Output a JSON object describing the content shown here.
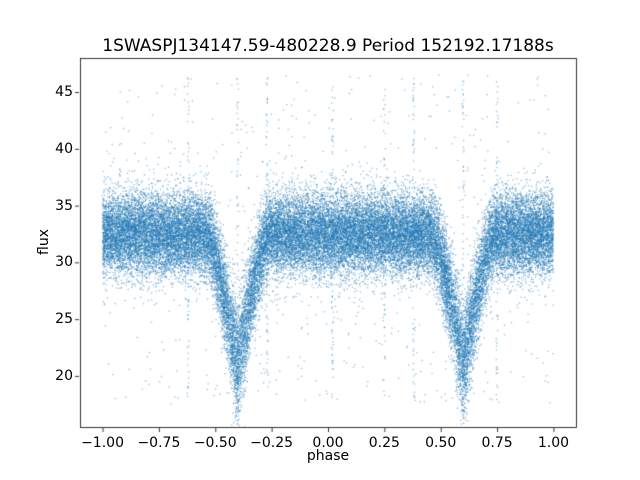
{
  "chart_data": {
    "type": "scatter",
    "title": "1SWASPJ134147.59-480228.9 Period 152192.17188s",
    "xlabel": "phase",
    "ylabel": "flux",
    "xlim": [
      -1.1,
      1.1
    ],
    "ylim": [
      15.5,
      48.0
    ],
    "xticks": [
      -1.0,
      -0.75,
      -0.5,
      -0.25,
      0.0,
      0.25,
      0.5,
      0.75,
      1.0
    ],
    "xtick_labels": [
      "−1.00",
      "−0.75",
      "−0.50",
      "−0.25",
      "0.00",
      "0.25",
      "0.50",
      "0.75",
      "1.00"
    ],
    "yticks": [
      20,
      25,
      30,
      35,
      40,
      45
    ],
    "ytick_labels": [
      "20",
      "25",
      "30",
      "35",
      "40",
      "45"
    ],
    "grid": false,
    "legend": null,
    "point_color": "#1f77b4",
    "point_alpha": 0.55,
    "marker_size_px": 1.2,
    "n_points": 40000,
    "baseline": {
      "mean_flux": 32.5,
      "sigma": 1.8,
      "outlier_fraction": 0.015,
      "outlier_flux_range": [
        17.5,
        46.5
      ]
    },
    "eclipses": [
      {
        "phase_center": -0.4,
        "depth": 11.5,
        "half_width": 0.14,
        "min_flux": 21.0
      },
      {
        "phase_center": 0.6,
        "depth": 11.5,
        "half_width": 0.14,
        "min_flux": 21.0
      }
    ],
    "outlier_columns": {
      "phases": [
        -0.62,
        -0.4,
        -0.27,
        0.02,
        0.25,
        0.38,
        0.6,
        0.75
      ],
      "flux_range": [
        18.0,
        46.5
      ],
      "points_per_column": 60
    },
    "binned_median_flux": {
      "phase": [
        -1.0,
        -0.9,
        -0.8,
        -0.7,
        -0.6,
        -0.5,
        -0.45,
        -0.4,
        -0.35,
        -0.3,
        -0.2,
        -0.1,
        0.0,
        0.1,
        0.2,
        0.3,
        0.4,
        0.5,
        0.55,
        0.6,
        0.65,
        0.7,
        0.8,
        0.9,
        1.0
      ],
      "flux": [
        32.5,
        32.5,
        32.5,
        32.5,
        32.4,
        31.2,
        26.5,
        21.5,
        26.5,
        31.2,
        32.4,
        32.5,
        32.5,
        32.5,
        32.5,
        32.4,
        32.5,
        31.2,
        26.5,
        21.5,
        26.5,
        31.2,
        32.5,
        32.5,
        32.5
      ]
    }
  }
}
